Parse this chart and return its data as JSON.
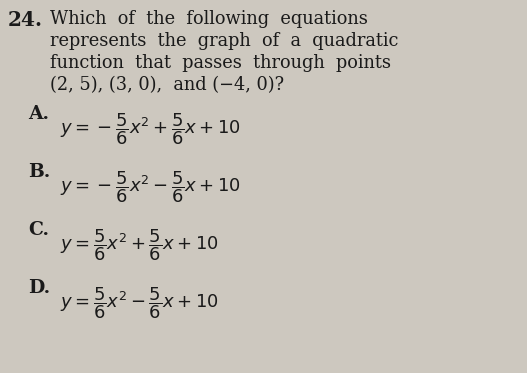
{
  "background_color": "#cdc8bf",
  "question_number": "24.",
  "question_text_lines": [
    "Which  of  the  following  equations",
    "represents  the  graph  of  a  quadratic",
    "function  that  passes  through  points",
    "(2, 5), (3, 0),  and (−4, 0)?"
  ],
  "options": [
    {
      "label": "A.",
      "expr": "$y = -\\dfrac{5}{6}x^2 + \\dfrac{5}{6}x + 10$"
    },
    {
      "label": "B.",
      "expr": "$y = -\\dfrac{5}{6}x^2 - \\dfrac{5}{6}x + 10$"
    },
    {
      "label": "C.",
      "expr": "$y = \\dfrac{5}{6}x^2 + \\dfrac{5}{6}x + 10$"
    },
    {
      "label": "D.",
      "expr": "$y = \\dfrac{5}{6}x^2 - \\dfrac{5}{6}x + 10$"
    }
  ],
  "text_color": "#1a1a1a",
  "question_fontsize": 12.8,
  "option_label_fontsize": 13.5,
  "option_expr_fontsize": 13.0,
  "number_fontsize": 14.5
}
